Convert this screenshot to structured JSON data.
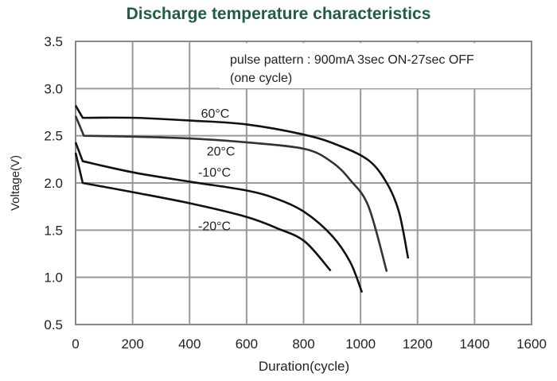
{
  "chart_data": {
    "type": "line",
    "title": "Discharge temperature characteristics",
    "xlabel": "Duration(cycle)",
    "ylabel": "Voltage(V)",
    "xlim": [
      0,
      1600
    ],
    "ylim": [
      0.5,
      3.5
    ],
    "xticks": [
      "0",
      "200",
      "400",
      "600",
      "800",
      "1000",
      "1200",
      "1400",
      "1600"
    ],
    "yticks": [
      "0.5",
      "1.0",
      "1.5",
      "2.0",
      "2.5",
      "3.0",
      "3.5"
    ],
    "grid": true,
    "note_lines": [
      "pulse pattern : 900mA 3sec ON-27sec OFF",
      "(one cycle)"
    ],
    "series": [
      {
        "name": "60°C",
        "label_at": [
          440,
          2.74
        ],
        "color": "#111111",
        "x": [
          0,
          25,
          205,
          408,
          600,
          804,
          921,
          1028,
          1092,
          1135,
          1167
        ],
        "y": [
          2.82,
          2.69,
          2.69,
          2.66,
          2.62,
          2.51,
          2.4,
          2.24,
          2.0,
          1.69,
          1.2
        ]
      },
      {
        "name": "20°C",
        "label_at": [
          460,
          2.34
        ],
        "color": "#333333",
        "x": [
          0,
          29,
          205,
          408,
          600,
          804,
          900,
          964,
          1028,
          1092
        ],
        "y": [
          2.71,
          2.5,
          2.49,
          2.47,
          2.43,
          2.36,
          2.22,
          2.03,
          1.75,
          1.06
        ]
      },
      {
        "name": "-10°C",
        "label_at": [
          430,
          2.12
        ],
        "color": "#111111",
        "x": [
          0,
          25,
          205,
          408,
          600,
          707,
          804,
          900,
          964,
          1005
        ],
        "y": [
          2.43,
          2.23,
          2.11,
          2.01,
          1.92,
          1.83,
          1.69,
          1.44,
          1.16,
          0.84
        ]
      },
      {
        "name": "-20°C",
        "label_at": [
          430,
          1.55
        ],
        "color": "#111111",
        "x": [
          0,
          25,
          205,
          408,
          600,
          707,
          804,
          895
        ],
        "y": [
          2.32,
          2.0,
          1.9,
          1.78,
          1.64,
          1.52,
          1.38,
          1.07
        ]
      }
    ]
  }
}
